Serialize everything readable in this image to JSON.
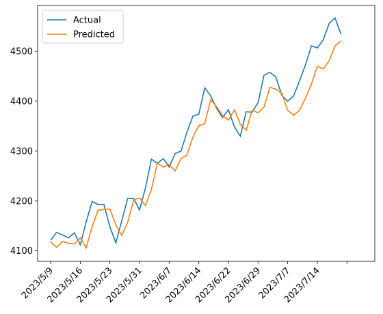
{
  "chart_data": {
    "type": "line",
    "xlim": [
      -2.2,
      54.7
    ],
    "xticks": [
      {
        "value": 0,
        "label": "2023/5/9"
      },
      {
        "value": 5,
        "label": "2023/5/16"
      },
      {
        "value": 10,
        "label": "2023/5/23"
      },
      {
        "value": 15,
        "label": "2023/5/31"
      },
      {
        "value": 20,
        "label": "2023/6/7"
      },
      {
        "value": 25,
        "label": "2023/6/14"
      },
      {
        "value": 30,
        "label": "2023/6/22"
      },
      {
        "value": 35,
        "label": "2023/6/29"
      },
      {
        "value": 40,
        "label": "2023/7/7"
      },
      {
        "value": 45,
        "label": "2023/7/14"
      },
      {
        "value": 50,
        "label": null
      }
    ],
    "ylim": [
      4079,
      4592
    ],
    "yticks": [
      4100,
      4200,
      4300,
      4400,
      4500
    ],
    "legend": "upper left",
    "series": [
      {
        "name": "Actual",
        "color": "#1f77b4",
        "values": [
          4121,
          4137,
          4132,
          4126,
          4136,
          4112,
          4158,
          4199,
          4193,
          4193,
          4148,
          4116,
          4160,
          4205,
          4205,
          4182,
          4226,
          4284,
          4275,
          4285,
          4268,
          4295,
          4300,
          4338,
          4370,
          4374,
          4427,
          4411,
          4386,
          4367,
          4383,
          4349,
          4330,
          4379,
          4378,
          4397,
          4452,
          4458,
          4449,
          4412,
          4400,
          4411,
          4441,
          4473,
          4511,
          4507,
          4523,
          4556,
          4567,
          4534
        ]
      },
      {
        "name": "Predicted",
        "color": "#ff7f0e",
        "values": [
          4118,
          4107,
          4119,
          4115,
          4114,
          4126,
          4106,
          4149,
          4181,
          4183,
          4184,
          4152,
          4131,
          4157,
          4202,
          4206,
          4191,
          4223,
          4276,
          4268,
          4273,
          4260,
          4285,
          4292,
          4328,
          4351,
          4355,
          4403,
          4389,
          4372,
          4362,
          4383,
          4354,
          4342,
          4382,
          4377,
          4388,
          4428,
          4424,
          4416,
          4382,
          4372,
          4382,
          4406,
          4434,
          4470,
          4465,
          4481,
          4511,
          4521
        ]
      }
    ]
  }
}
